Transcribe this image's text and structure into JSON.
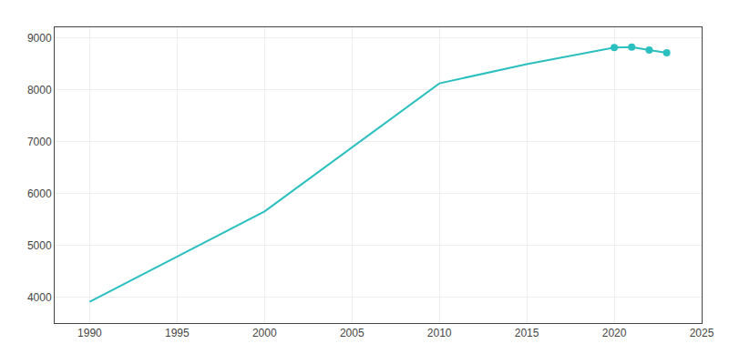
{
  "chart_data": {
    "type": "line",
    "x": [
      1990,
      2000,
      2010,
      2015,
      2020,
      2021,
      2022,
      2023
    ],
    "series": [
      {
        "type": "line",
        "color": "#2bbfbf",
        "values": [
          3910,
          5650,
          8120,
          8490,
          8810,
          8820,
          8760,
          8710
        ]
      },
      {
        "type": "scatter",
        "marker": "circle",
        "color": "#2bbfbf",
        "values": [
          null,
          null,
          null,
          null,
          8810,
          8820,
          8760,
          8710
        ]
      }
    ],
    "xlim": [
      1988,
      2025
    ],
    "ylim": [
      3500,
      9200
    ],
    "xticks": [
      1990,
      1995,
      2000,
      2005,
      2010,
      2015,
      2020,
      2025
    ],
    "yticks": [
      4000,
      5000,
      6000,
      7000,
      8000,
      9000
    ],
    "grid": true
  }
}
